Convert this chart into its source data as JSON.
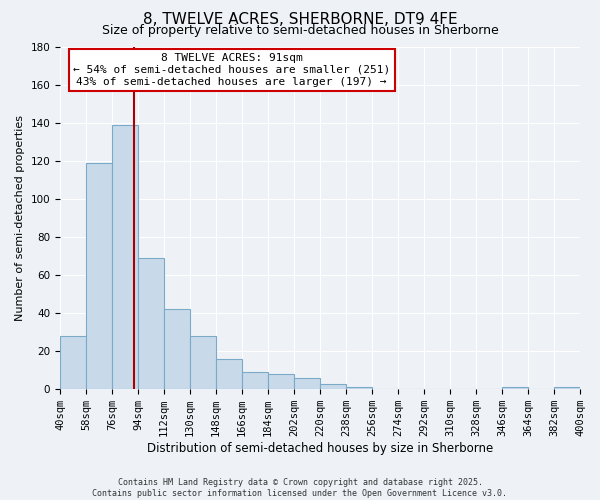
{
  "title": "8, TWELVE ACRES, SHERBORNE, DT9 4FE",
  "subtitle": "Size of property relative to semi-detached houses in Sherborne",
  "xlabel": "Distribution of semi-detached houses by size in Sherborne",
  "ylabel": "Number of semi-detached properties",
  "bar_values": [
    28,
    119,
    139,
    69,
    42,
    28,
    16,
    9,
    8,
    6,
    3,
    1,
    0,
    0,
    0,
    0,
    0,
    1,
    0,
    1
  ],
  "bin_edges": [
    40,
    58,
    76,
    94,
    112,
    130,
    148,
    166,
    184,
    202,
    220,
    238,
    256,
    274,
    292,
    310,
    328,
    346,
    364,
    382,
    400
  ],
  "bar_color": "#c8daea",
  "bar_edge_color": "#7aaac8",
  "vline_x": 91,
  "vline_color": "#aa0000",
  "annotation_title": "8 TWELVE ACRES: 91sqm",
  "annotation_line1": "← 54% of semi-detached houses are smaller (251)",
  "annotation_line2": "43% of semi-detached houses are larger (197) →",
  "annotation_box_color": "#ffffff",
  "annotation_box_edge": "#cc0000",
  "ylim": [
    0,
    180
  ],
  "yticks": [
    0,
    20,
    40,
    60,
    80,
    100,
    120,
    140,
    160,
    180
  ],
  "footer_line1": "Contains HM Land Registry data © Crown copyright and database right 2025.",
  "footer_line2": "Contains public sector information licensed under the Open Government Licence v3.0.",
  "background_color": "#eef2f7",
  "grid_color": "#ffffff",
  "title_fontsize": 11,
  "subtitle_fontsize": 9,
  "xlabel_fontsize": 8.5,
  "ylabel_fontsize": 8,
  "tick_fontsize": 7.5,
  "footer_fontsize": 6.0,
  "ann_fontsize": 8
}
